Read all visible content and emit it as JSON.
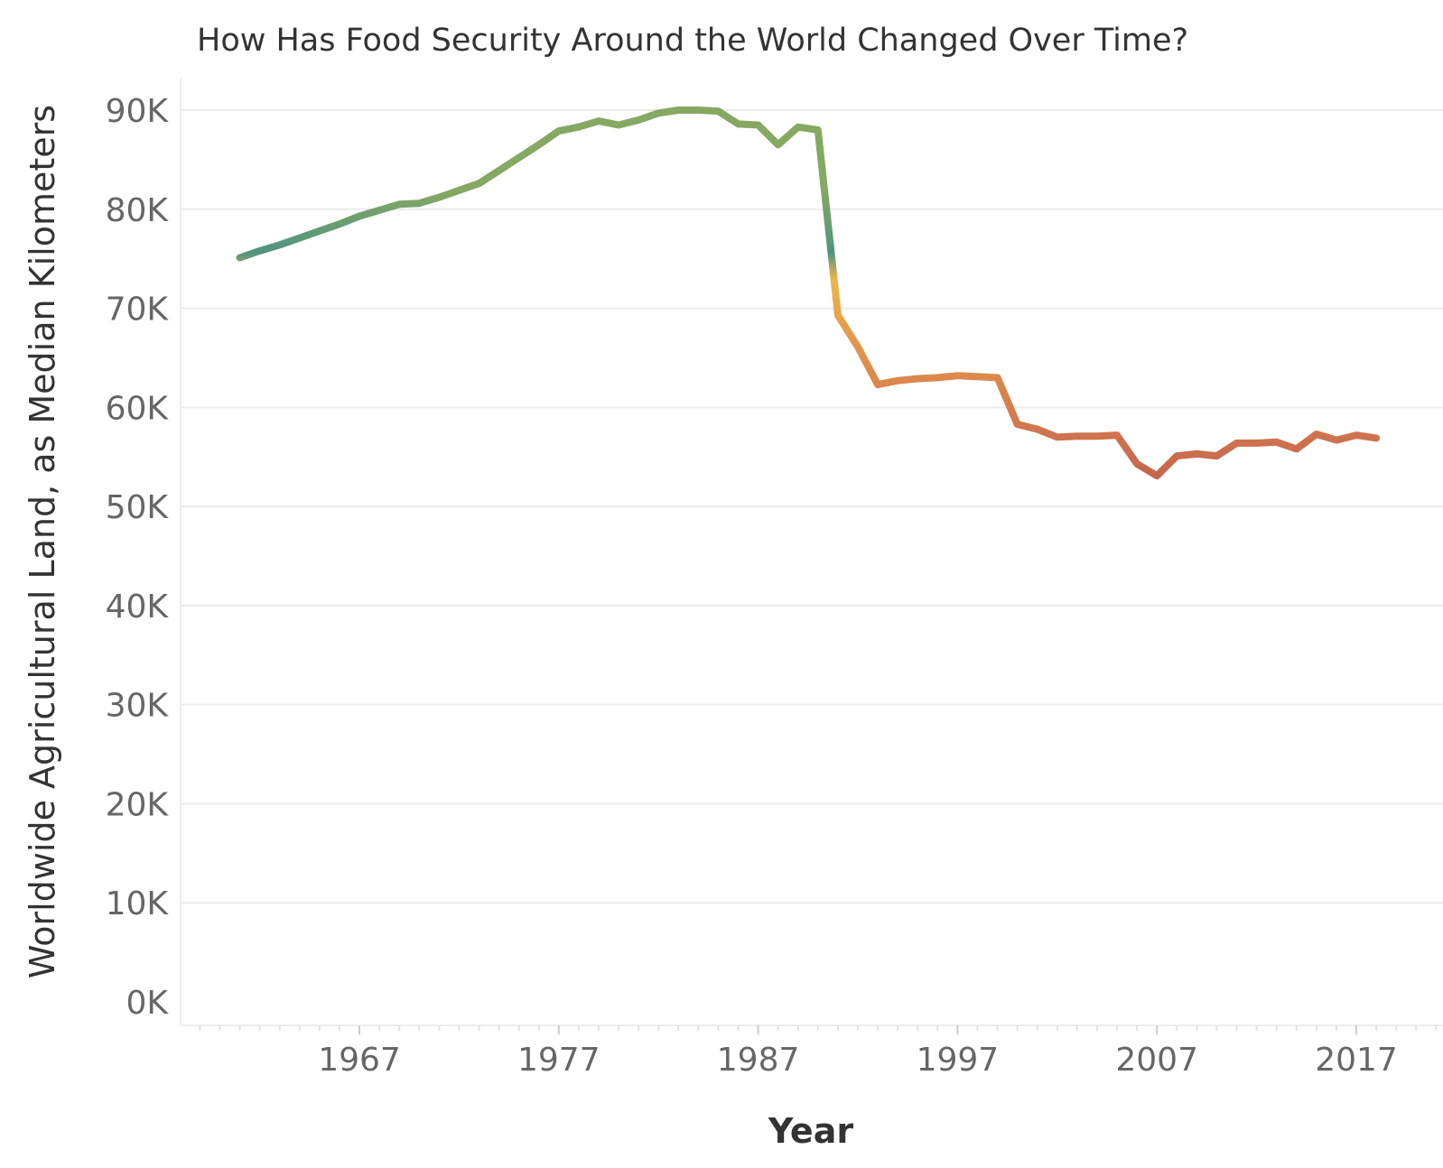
{
  "chart_data": {
    "type": "line",
    "title": "How Has Food Security Around the World Changed Over Time?",
    "xlabel": "Year",
    "ylabel": "Worldwide Agricultural Land, as Median Kilometers",
    "x_ticks": [
      1967,
      1977,
      1987,
      1997,
      2007,
      2017
    ],
    "y_ticks": [
      0,
      10000,
      20000,
      30000,
      40000,
      50000,
      60000,
      70000,
      80000,
      90000
    ],
    "y_tick_labels": [
      "0K",
      "10K",
      "20K",
      "30K",
      "40K",
      "50K",
      "60K",
      "70K",
      "80K",
      "90K"
    ],
    "xlim": [
      1959,
      2021
    ],
    "ylim": [
      0,
      90000
    ],
    "grid": "horizontal",
    "color_scale": [
      "#c4614f",
      "#dd8a4d",
      "#eeb54a",
      "#4f9480",
      "#85a862"
    ],
    "x": [
      1961,
      1962,
      1963,
      1964,
      1965,
      1966,
      1967,
      1968,
      1969,
      1970,
      1971,
      1972,
      1973,
      1974,
      1975,
      1976,
      1977,
      1978,
      1979,
      1980,
      1981,
      1982,
      1983,
      1984,
      1985,
      1986,
      1987,
      1988,
      1989,
      1990,
      1991,
      1992,
      1993,
      1994,
      1995,
      1996,
      1997,
      1998,
      1999,
      2000,
      2001,
      2002,
      2003,
      2004,
      2005,
      2006,
      2007,
      2008,
      2009,
      2010,
      2011,
      2012,
      2013,
      2014,
      2015,
      2016,
      2017,
      2018
    ],
    "values": [
      75100,
      75800,
      76400,
      77100,
      77800,
      78500,
      79300,
      79900,
      80500,
      80600,
      81200,
      81900,
      82600,
      83900,
      85200,
      86500,
      87900,
      88300,
      88900,
      88500,
      89000,
      89700,
      90000,
      90000,
      89900,
      88600,
      88500,
      86500,
      88300,
      88000,
      69300,
      66100,
      62300,
      62700,
      62900,
      63000,
      63200,
      63100,
      63000,
      58300,
      57800,
      57000,
      57100,
      57100,
      57200,
      54300,
      53100,
      55100,
      55300,
      55100,
      56400,
      56400,
      56500,
      55800,
      57300,
      56700,
      57200,
      56900
    ]
  }
}
